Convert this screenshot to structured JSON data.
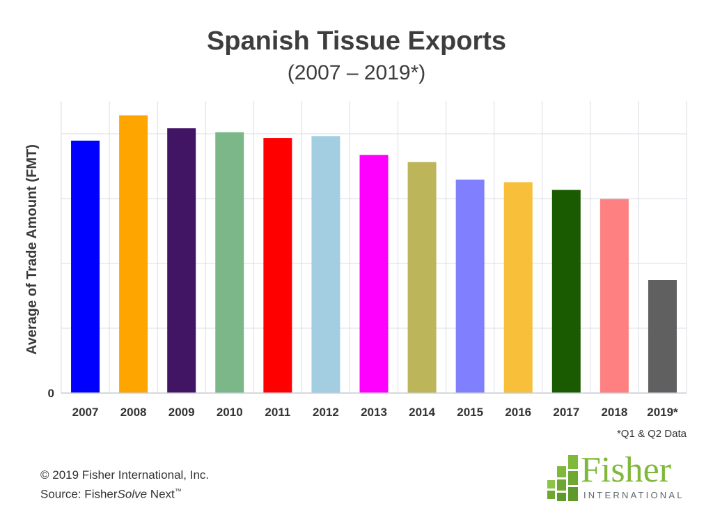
{
  "chart_data": {
    "type": "bar",
    "title": "Spanish Tissue Exports",
    "subtitle": "(2007 – 2019*)",
    "xlabel": "",
    "ylabel": "Average of Trade Amount (FMT)",
    "y_tick_labels": [
      "0"
    ],
    "grid": true,
    "legend": "none",
    "categories": [
      "2007",
      "2008",
      "2009",
      "2010",
      "2011",
      "2012",
      "2013",
      "2014",
      "2015",
      "2016",
      "2017",
      "2018",
      "2019*"
    ],
    "values": [
      3.89,
      4.28,
      4.08,
      4.02,
      3.93,
      3.96,
      3.67,
      3.56,
      3.29,
      3.25,
      3.13,
      2.99,
      1.74
    ],
    "ylim": [
      0,
      4.5
    ],
    "colors": [
      "#0000ff",
      "#ffa500",
      "#421464",
      "#7bb788",
      "#ff0000",
      "#a3cde0",
      "#ff00ff",
      "#bcb55a",
      "#8080ff",
      "#f8bf3a",
      "#1a5a00",
      "#ff8080",
      "#606060"
    ],
    "footnote": "*Q1 & Q2 Data"
  },
  "footer": {
    "copyright": "© 2019 Fisher International, Inc.",
    "source_prefix": "Source: Fisher",
    "source_italic": "Solve",
    "source_suffix": " Next",
    "trademark": "™"
  },
  "logo": {
    "name": "Fisher",
    "tagline": "INTERNATIONAL",
    "color": "#7fb83a"
  }
}
